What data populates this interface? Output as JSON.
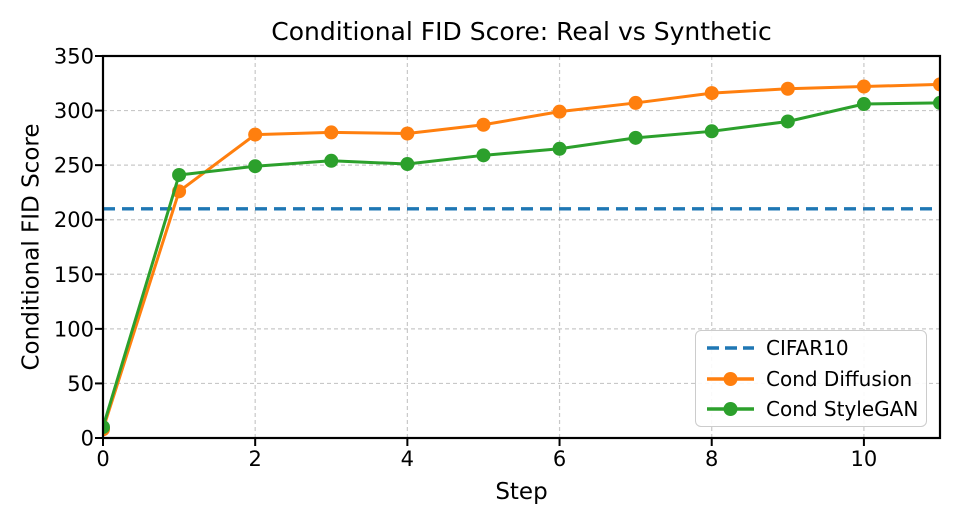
{
  "chart_data": {
    "type": "line",
    "title": "Conditional FID Score: Real vs Synthetic",
    "xlabel": "Step",
    "ylabel": "Conditional FID Score",
    "xlim": [
      0,
      11
    ],
    "ylim": [
      0,
      350
    ],
    "xticks": [
      0,
      2,
      4,
      6,
      8,
      10
    ],
    "yticks": [
      0,
      50,
      100,
      150,
      200,
      250,
      300,
      350
    ],
    "grid": true,
    "grid_color": "#c8c8c8",
    "text_color": "#000000",
    "background": "#ffffff",
    "x": [
      0,
      1,
      2,
      3,
      4,
      5,
      6,
      7,
      8,
      9,
      10,
      11
    ],
    "series": [
      {
        "name": "Cond Diffusion",
        "color": "#ff7f0e",
        "line_style": "solid",
        "marker": "circle",
        "values": [
          8,
          226,
          278,
          280,
          279,
          287,
          299,
          307,
          316,
          320,
          322,
          324
        ]
      },
      {
        "name": "Cond StyleGAN",
        "color": "#2ca02c",
        "line_style": "solid",
        "marker": "circle",
        "values": [
          10,
          241,
          249,
          254,
          251,
          259,
          265,
          275,
          281,
          290,
          306,
          307
        ]
      }
    ],
    "baseline": {
      "name": "CIFAR10",
      "color": "#1f77b4",
      "line_style": "dashed",
      "value": 210
    },
    "legend_position": "lower right",
    "legend_items": [
      {
        "label": "CIFAR10",
        "color": "#1f77b4",
        "dashed": true,
        "marker": false
      },
      {
        "label": "Cond Diffusion",
        "color": "#ff7f0e",
        "dashed": false,
        "marker": true
      },
      {
        "label": "Cond StyleGAN",
        "color": "#2ca02c",
        "dashed": false,
        "marker": true
      }
    ]
  }
}
